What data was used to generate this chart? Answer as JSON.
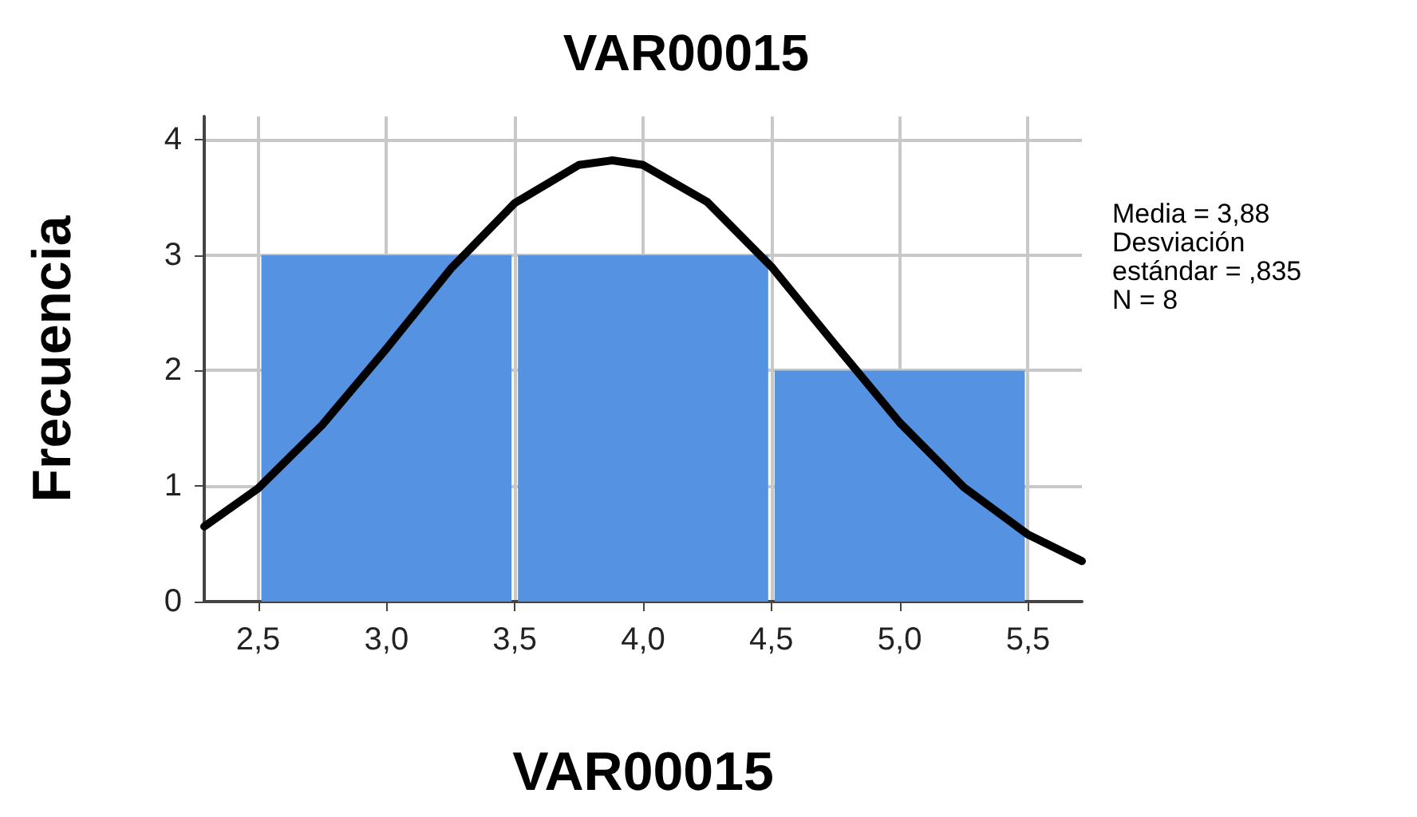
{
  "chart_data": {
    "type": "histogram",
    "title": "VAR00015",
    "xlabel": "VAR00015",
    "ylabel": "Frecuencia",
    "bins": [
      2.5,
      3.5,
      4.5,
      5.5
    ],
    "values": [
      3,
      3,
      2
    ],
    "color": "#5593e2",
    "series": [
      {
        "type": "line",
        "color": "#000000",
        "x": [
          2.29,
          2.5,
          2.75,
          3.0,
          3.25,
          3.5,
          3.75,
          3.88,
          4.0,
          4.25,
          4.5,
          4.75,
          5.0,
          5.25,
          5.5,
          5.71
        ],
        "values": [
          0.65,
          0.98,
          1.53,
          2.19,
          2.88,
          3.45,
          3.78,
          3.82,
          3.78,
          3.46,
          2.9,
          2.22,
          1.55,
          0.99,
          0.58,
          0.35
        ]
      }
    ],
    "marker": "none",
    "line_style": "solid",
    "xlim": [
      2.29,
      5.71
    ],
    "xticks": [
      {
        "value": 2.5,
        "label": "2,5"
      },
      {
        "value": 3.0,
        "label": "3,0"
      },
      {
        "value": 3.5,
        "label": "3,5"
      },
      {
        "value": 4.0,
        "label": "4,0"
      },
      {
        "value": 4.5,
        "label": "4,5"
      },
      {
        "value": 5.0,
        "label": "5,0"
      },
      {
        "value": 5.5,
        "label": "5,5"
      }
    ],
    "ylim": [
      0,
      4.2
    ],
    "yticks": [
      0,
      1,
      2,
      3,
      4
    ],
    "grid": true,
    "annotations": [
      "Media = 3,88",
      "Desviación estándar = ,835",
      "N = 8"
    ]
  }
}
